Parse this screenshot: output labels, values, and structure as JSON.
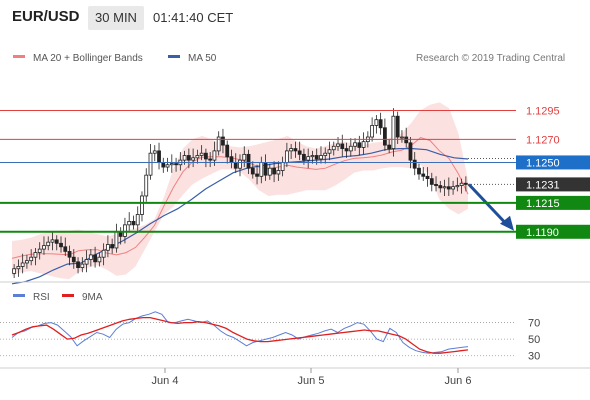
{
  "header": {
    "symbol": "EUR/USD",
    "timeframe": "30 MIN",
    "time": "01:41:40 CET"
  },
  "legend": {
    "bollinger": {
      "label": "MA 20 + Bollinger Bands",
      "color": "#f08080"
    },
    "ma50": {
      "label": "MA 50",
      "color": "#3a5ea8"
    },
    "credit": "Research © 2019 Trading Central",
    "rsi": {
      "label": "RSI",
      "color": "#5b7fd6"
    },
    "rsi_ma": {
      "label": "9MA",
      "color": "#e02020"
    }
  },
  "levels": [
    {
      "value": 1.1295,
      "label": "1.1295",
      "style": "resistance",
      "color": "#e04040"
    },
    {
      "value": 1.127,
      "label": "1.1270",
      "style": "resistance",
      "color": "#e04040"
    },
    {
      "value": 1.125,
      "label": "1.1250",
      "style": "ma50",
      "color": "#1e6fc8"
    },
    {
      "value": 1.1231,
      "label": "1.1231",
      "style": "last",
      "color": "#333333"
    },
    {
      "value": 1.1215,
      "label": "1.1215",
      "style": "support",
      "color": "#118811"
    },
    {
      "value": 1.119,
      "label": "1.1190",
      "style": "support",
      "color": "#118811"
    }
  ],
  "chart_data": [
    {
      "type": "candlestick",
      "title": "EUR/USD 30 MIN",
      "ylim": [
        1.115,
        1.133
      ],
      "xticks": [
        "Jun 4",
        "Jun 5",
        "Jun 6"
      ],
      "close": [
        1.1158,
        1.116,
        1.1163,
        1.1165,
        1.1168,
        1.1172,
        1.1175,
        1.1178,
        1.1181,
        1.1183,
        1.118,
        1.1177,
        1.1173,
        1.1168,
        1.1164,
        1.1159,
        1.1162,
        1.1166,
        1.117,
        1.1164,
        1.1168,
        1.1174,
        1.1179,
        1.1176,
        1.119,
        1.1186,
        1.1196,
        1.1199,
        1.1196,
        1.1205,
        1.1221,
        1.1239,
        1.1258,
        1.126,
        1.125,
        1.1246,
        1.1248,
        1.1249,
        1.1248,
        1.1252,
        1.1256,
        1.1252,
        1.1254,
        1.1256,
        1.1258,
        1.1253,
        1.1252,
        1.126,
        1.1272,
        1.1265,
        1.1255,
        1.125,
        1.1245,
        1.1252,
        1.1257,
        1.1245,
        1.124,
        1.1238,
        1.125,
        1.1239,
        1.1245,
        1.124,
        1.1243,
        1.125,
        1.126,
        1.1262,
        1.126,
        1.1257,
        1.1252,
        1.1255,
        1.1256,
        1.1253,
        1.1256,
        1.1258,
        1.1261,
        1.1264,
        1.1266,
        1.1262,
        1.126,
        1.1264,
        1.1267,
        1.1263,
        1.1268,
        1.1272,
        1.1282,
        1.1287,
        1.128,
        1.1265,
        1.1262,
        1.129,
        1.1272,
        1.1272,
        1.1267,
        1.1252,
        1.1245,
        1.124,
        1.1238,
        1.1236,
        1.1231,
        1.123,
        1.1228,
        1.1229,
        1.1227,
        1.1229,
        1.123,
        1.1232,
        1.1231
      ],
      "bollinger_upper": [
        1.1182,
        1.1183,
        1.1185,
        1.1188,
        1.119,
        1.1191,
        1.1191,
        1.1192,
        1.119,
        1.1188,
        1.1186,
        1.1188,
        1.1191,
        1.1193,
        1.1196,
        1.1201,
        1.122,
        1.1245,
        1.1262,
        1.127,
        1.1273,
        1.127,
        1.1266,
        1.1264,
        1.1263,
        1.1264,
        1.1266,
        1.1268,
        1.127,
        1.1273,
        1.1268,
        1.1264,
        1.1262,
        1.1264,
        1.1267,
        1.1268,
        1.1266,
        1.1265,
        1.1267,
        1.1268,
        1.1272,
        1.1275,
        1.1284,
        1.1295,
        1.13,
        1.1302,
        1.1297,
        1.1275,
        1.1235
      ],
      "bollinger_lower": [
        1.1152,
        1.1155,
        1.1156,
        1.1154,
        1.1152,
        1.115,
        1.1149,
        1.1155,
        1.1159,
        1.1161,
        1.1157,
        1.1152,
        1.1153,
        1.116,
        1.1175,
        1.119,
        1.1205,
        1.1212,
        1.1222,
        1.1231,
        1.1236,
        1.124,
        1.1244,
        1.1244,
        1.1242,
        1.1235,
        1.1226,
        1.1221,
        1.1222,
        1.1222,
        1.1224,
        1.1226,
        1.1226,
        1.1226,
        1.123,
        1.1235,
        1.1241,
        1.1243,
        1.1243,
        1.1245,
        1.1246,
        1.1246,
        1.1245,
        1.1248,
        1.1238,
        1.1218,
        1.121,
        1.1205,
        1.121
      ],
      "ma50": [
        1.1145,
        1.1147,
        1.1151,
        1.1157,
        1.1162,
        1.1163,
        1.117,
        1.1176,
        1.1182,
        1.1189,
        1.1197,
        1.1204,
        1.121,
        1.1218,
        1.1227,
        1.1234,
        1.1241,
        1.1245,
        1.1247,
        1.1249,
        1.125,
        1.1251,
        1.1252,
        1.1253,
        1.1255,
        1.1256,
        1.1258,
        1.1261,
        1.1262,
        1.1262,
        1.1261,
        1.1257,
        1.1254,
        1.1253
      ],
      "forecast": {
        "from": 1.1231,
        "to": 1.119
      }
    },
    {
      "type": "line",
      "title": "RSI",
      "ylim": [
        20,
        90
      ],
      "yticks": [
        30,
        50,
        70
      ],
      "xticks": [
        "Jun 4",
        "Jun 5",
        "Jun 6"
      ],
      "series": [
        {
          "name": "RSI",
          "values": [
            52,
            58,
            60,
            64,
            66,
            69,
            70,
            67,
            60,
            53,
            42,
            48,
            53,
            58,
            56,
            52,
            62,
            68,
            70,
            75,
            78,
            80,
            83,
            80,
            70,
            70,
            72,
            74,
            72,
            70,
            72,
            67,
            60,
            55,
            52,
            47,
            42,
            46,
            48,
            50,
            52,
            55,
            58,
            55,
            50,
            53,
            55,
            57,
            60,
            62,
            58,
            63,
            66,
            70,
            68,
            60,
            50,
            47,
            63,
            58,
            46,
            40,
            36,
            34,
            33,
            34,
            35,
            38,
            39,
            40,
            41
          ]
        },
        {
          "name": "9MA",
          "values": [
            55,
            58,
            62,
            65,
            66,
            67,
            62,
            56,
            50,
            51,
            55,
            57,
            60,
            63,
            66,
            69,
            72,
            74,
            75,
            76,
            76,
            74,
            72,
            70,
            69,
            70,
            70,
            71,
            70,
            68,
            66,
            63,
            58,
            54,
            50,
            48,
            47,
            47,
            48,
            49,
            50,
            51,
            52,
            53,
            54,
            55,
            56,
            57,
            58,
            59,
            60,
            61,
            60,
            60,
            58,
            56,
            54,
            50,
            44,
            38,
            35,
            33,
            33,
            34,
            35,
            36,
            37
          ]
        }
      ]
    }
  ]
}
